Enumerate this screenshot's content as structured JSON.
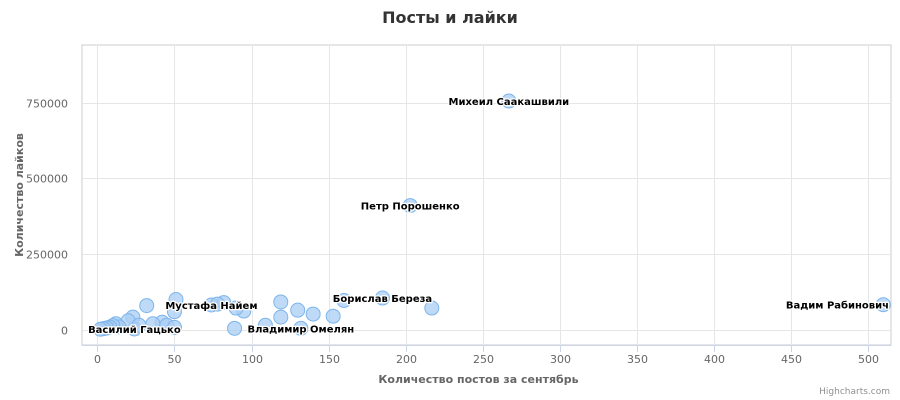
{
  "title": "Посты и лайки",
  "credit": "Highcharts.com",
  "chart_data": {
    "type": "scatter",
    "title": "Посты и лайки",
    "xlabel": "Количество постов за сентябрь",
    "ylabel": "Количество лайков",
    "xlim": [
      -10,
      515
    ],
    "ylim": [
      -50000,
      940000
    ],
    "x_ticks": [
      0,
      50,
      100,
      150,
      200,
      250,
      300,
      350,
      400,
      450,
      500
    ],
    "y_ticks": [
      0,
      250000,
      500000,
      750000
    ],
    "y_tick_labels": [
      "0",
      "250000",
      "500000",
      "750000"
    ],
    "grid": true,
    "legend": "none",
    "marker_color": "#a9cdf4",
    "marker_stroke": "#7cb5ec",
    "points": [
      {
        "x": 267,
        "y": 755000,
        "label": "Михеил Саакашвили"
      },
      {
        "x": 203,
        "y": 410000,
        "label": "Петр Порошенко"
      },
      {
        "x": 510,
        "y": 83000,
        "label": "Вадим Рабинович"
      },
      {
        "x": 185,
        "y": 105000,
        "label": "Борислав Береза"
      },
      {
        "x": 74,
        "y": 82000,
        "label": "Мустафа Найем"
      },
      {
        "x": 132,
        "y": 5000,
        "label": "Владимир Омелян"
      },
      {
        "x": 24,
        "y": 3000,
        "label": "Василий Гацько"
      },
      {
        "x": 217,
        "y": 72000
      },
      {
        "x": 160,
        "y": 97000
      },
      {
        "x": 140,
        "y": 52000
      },
      {
        "x": 130,
        "y": 65000
      },
      {
        "x": 119,
        "y": 92000
      },
      {
        "x": 119,
        "y": 42000
      },
      {
        "x": 109,
        "y": 15000
      },
      {
        "x": 153,
        "y": 45000
      },
      {
        "x": 95,
        "y": 62000
      },
      {
        "x": 90,
        "y": 72000
      },
      {
        "x": 89,
        "y": 5000
      },
      {
        "x": 82,
        "y": 90000
      },
      {
        "x": 78,
        "y": 85000
      },
      {
        "x": 51,
        "y": 100000
      },
      {
        "x": 50,
        "y": 60000
      },
      {
        "x": 32,
        "y": 80000
      },
      {
        "x": 23,
        "y": 42000
      },
      {
        "x": 20,
        "y": 30000
      },
      {
        "x": 42,
        "y": 25000
      },
      {
        "x": 36,
        "y": 20000
      },
      {
        "x": 45,
        "y": 15000
      },
      {
        "x": 50,
        "y": 8000
      },
      {
        "x": 27,
        "y": 15000
      },
      {
        "x": 12,
        "y": 20000
      },
      {
        "x": 14,
        "y": 10000
      },
      {
        "x": 10,
        "y": 14000
      },
      {
        "x": 8,
        "y": 9000
      },
      {
        "x": 6,
        "y": 6000
      },
      {
        "x": 4,
        "y": 4000
      },
      {
        "x": 2,
        "y": 2000
      }
    ]
  }
}
